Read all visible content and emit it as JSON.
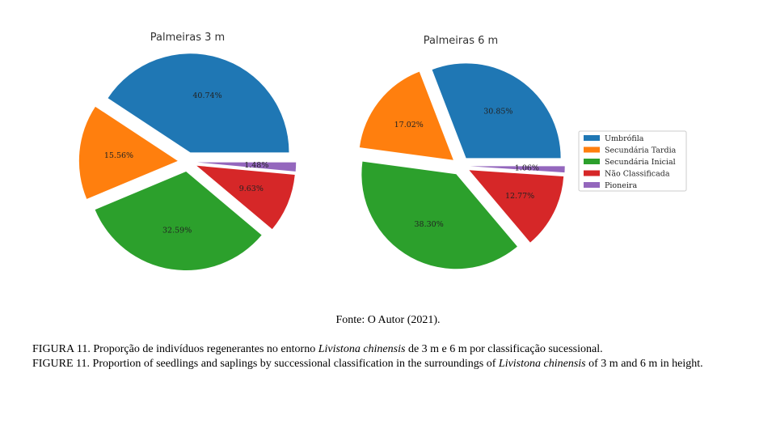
{
  "chart_data": [
    {
      "type": "pie",
      "title": "Palmeiras 3 m",
      "categories": [
        "Umbrófila",
        "Secundária Tardia",
        "Secundária Inicial",
        "Não Classificada",
        "Pioneira"
      ],
      "values": [
        40.74,
        15.56,
        32.59,
        9.63,
        1.48
      ],
      "labels": [
        "40.74%",
        "15.56%",
        "32.59%",
        "9.63%",
        "1.48%"
      ]
    },
    {
      "type": "pie",
      "title": "Palmeiras 6 m",
      "categories": [
        "Umbrófila",
        "Secundária Tardia",
        "Secundária Inicial",
        "Não Classificada",
        "Pioneira"
      ],
      "values": [
        30.85,
        17.02,
        38.3,
        12.77,
        1.06
      ],
      "labels": [
        "30.85%",
        "17.02%",
        "38.30%",
        "12.77%",
        "1.06%"
      ]
    }
  ],
  "legend": {
    "entries": [
      "Umbrófila",
      "Secundária Tardia",
      "Secundária Inicial",
      "Não Classificada",
      "Pioneira"
    ],
    "placement": "right"
  },
  "colors": [
    "#1f77b4",
    "#ff7f0e",
    "#2ca02c",
    "#d62728",
    "#9467bd"
  ],
  "source": "Fonte: O Autor (2021).",
  "caption_pt": {
    "before": "FIGURA 11. Proporção de indivíduos regenerantes no entorno ",
    "species": "Livistona chinensis",
    "after": " de 3 m e 6 m por classificação sucessional."
  },
  "caption_en": {
    "before": "FIGURE 11. Proportion of seedlings and saplings by successional classification in the surroundings of ",
    "species": "Livistona chinensis",
    "after": " of 3 m and 6 m in height."
  }
}
